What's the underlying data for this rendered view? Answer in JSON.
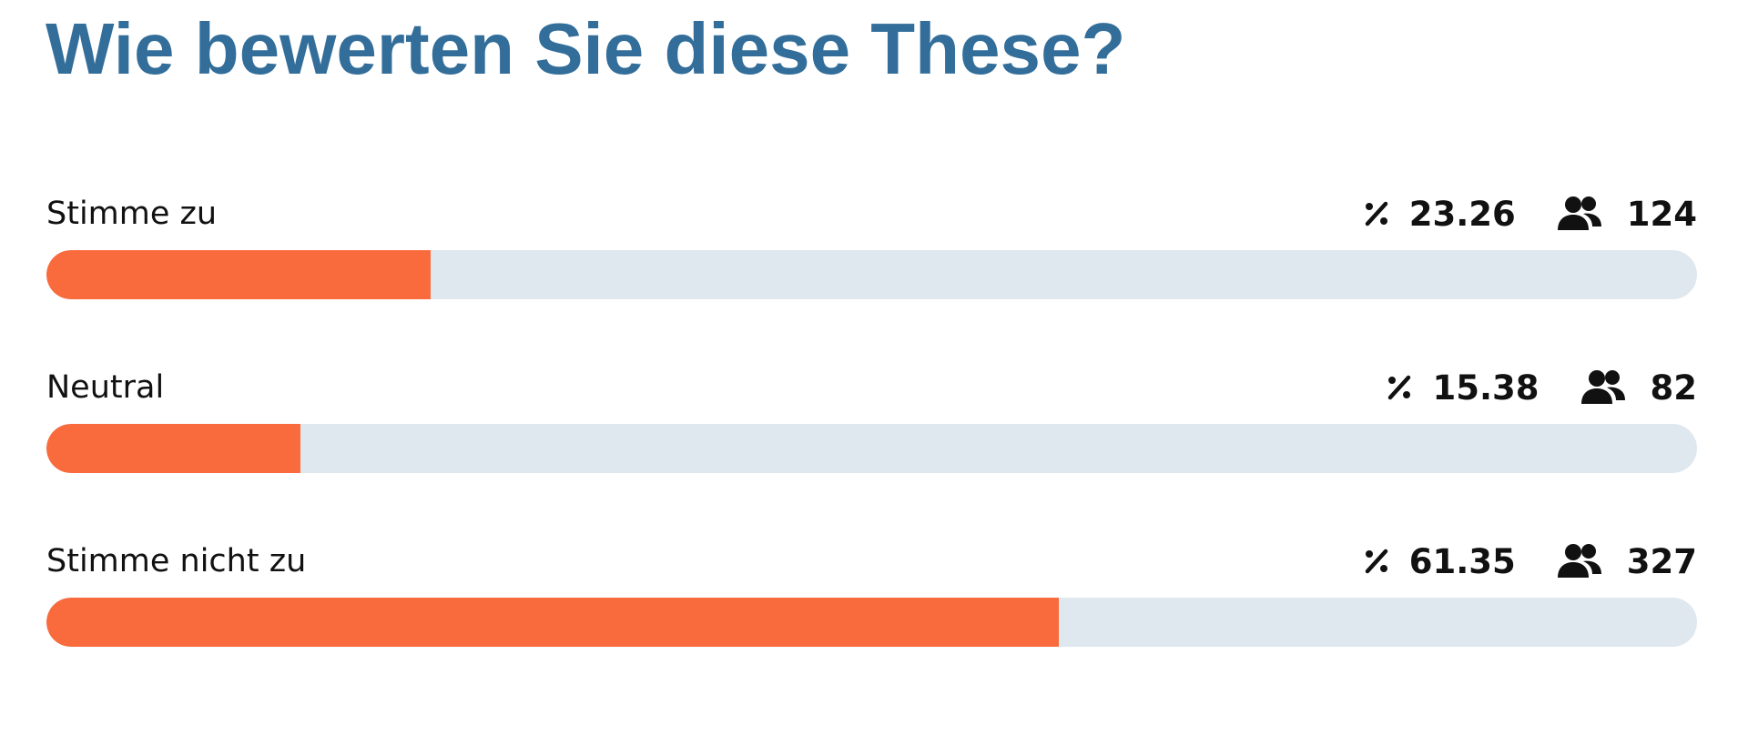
{
  "title": "Wie bewerten Sie diese These?",
  "options": [
    {
      "label": "Stimme zu",
      "percent": 23.26,
      "count": 124
    },
    {
      "label": "Neutral",
      "percent": 15.38,
      "count": 82
    },
    {
      "label": "Stimme nicht zu",
      "percent": 61.35,
      "count": 327
    }
  ]
}
